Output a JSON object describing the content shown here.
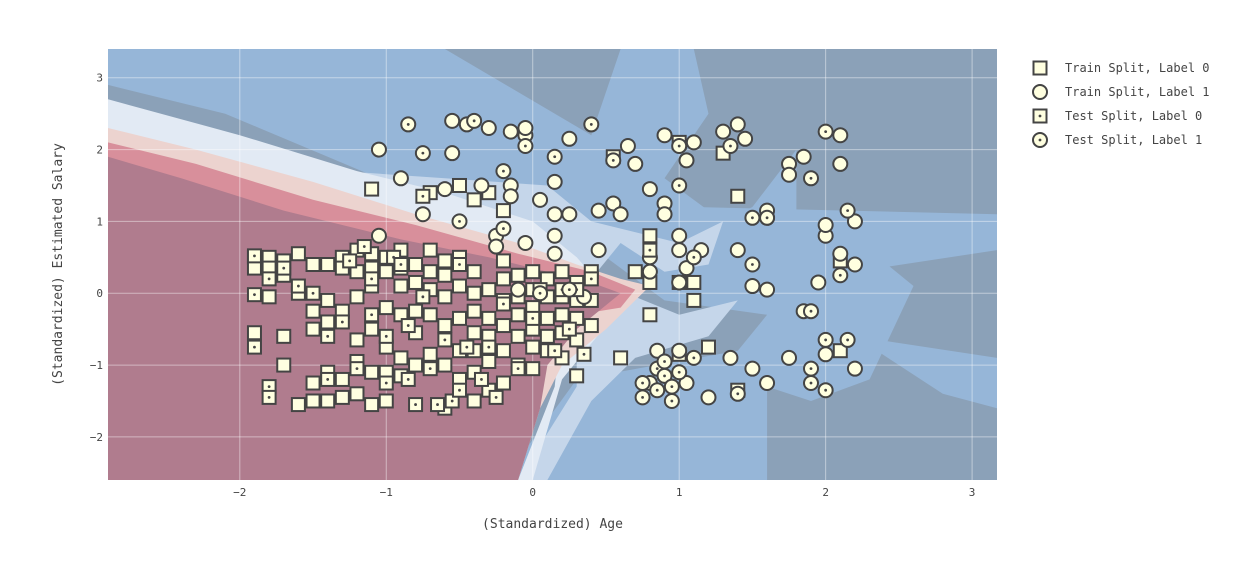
{
  "chart_data": {
    "type": "scatter",
    "title": "",
    "xlabel": "(Standardized) Age",
    "ylabel": "(Standardized) Estimated Salary",
    "xlim": [
      -2.9,
      3.17
    ],
    "ylim": [
      -2.6,
      3.4
    ],
    "x_ticks": [
      "−2",
      "−1",
      "0",
      "1",
      "2",
      "3"
    ],
    "y_ticks": [
      "−2",
      "−1",
      "0",
      "1",
      "2",
      "3"
    ],
    "grid": true,
    "legend_position": "right",
    "background": "decision-region contour (red = label 0 region, blue = label 1 region)",
    "colors": {
      "marker_fill": "#ffffe0",
      "marker_stroke": "#444444",
      "region_label0_dark": "#b07c8e",
      "region_label0_mid": "#d88f9b",
      "region_label0_light": "#ecd3cf",
      "region_neutral": "#e2eaf4",
      "region_label1_light": "#c5d6ea",
      "region_label1_mid": "#96b6d8",
      "region_label1_dark": "#8ba1b8"
    },
    "series": [
      {
        "name": "Train Split, Label 0",
        "marker": "square",
        "points": [
          [
            -1.9,
            0.5
          ],
          [
            -1.9,
            0.35
          ],
          [
            -1.9,
            -0.55
          ],
          [
            -1.8,
            0.5
          ],
          [
            -1.8,
            0.35
          ],
          [
            -1.8,
            -0.05
          ],
          [
            -1.7,
            0.45
          ],
          [
            -1.7,
            0.25
          ],
          [
            -1.7,
            -0.6
          ],
          [
            -1.7,
            -1.0
          ],
          [
            -1.6,
            0.55
          ],
          [
            -1.6,
            0.0
          ],
          [
            -1.6,
            -1.55
          ],
          [
            -1.5,
            0.4
          ],
          [
            -1.5,
            -0.25
          ],
          [
            -1.5,
            -0.5
          ],
          [
            -1.5,
            -1.25
          ],
          [
            -1.5,
            -1.5
          ],
          [
            -1.4,
            0.4
          ],
          [
            -1.4,
            -0.1
          ],
          [
            -1.4,
            -0.4
          ],
          [
            -1.4,
            -1.1
          ],
          [
            -1.4,
            -1.5
          ],
          [
            -1.3,
            0.5
          ],
          [
            -1.3,
            0.35
          ],
          [
            -1.3,
            -0.25
          ],
          [
            -1.3,
            -1.2
          ],
          [
            -1.3,
            -1.45
          ],
          [
            -1.2,
            0.6
          ],
          [
            -1.2,
            0.3
          ],
          [
            -1.2,
            -0.05
          ],
          [
            -1.2,
            -0.65
          ],
          [
            -1.2,
            -0.95
          ],
          [
            -1.2,
            -1.4
          ],
          [
            -1.1,
            1.45
          ],
          [
            -1.1,
            0.55
          ],
          [
            -1.1,
            0.35
          ],
          [
            -1.1,
            0.1
          ],
          [
            -1.1,
            -0.5
          ],
          [
            -1.1,
            -1.1
          ],
          [
            -1.1,
            -1.55
          ],
          [
            -1.0,
            0.5
          ],
          [
            -1.0,
            0.3
          ],
          [
            -1.0,
            -0.2
          ],
          [
            -1.0,
            -0.75
          ],
          [
            -1.0,
            -1.1
          ],
          [
            -1.0,
            -1.5
          ],
          [
            -0.9,
            0.6
          ],
          [
            -0.9,
            0.35
          ],
          [
            -0.9,
            0.1
          ],
          [
            -0.9,
            -0.3
          ],
          [
            -0.9,
            -0.9
          ],
          [
            -0.9,
            -1.15
          ],
          [
            -0.8,
            0.4
          ],
          [
            -0.8,
            0.15
          ],
          [
            -0.8,
            -0.25
          ],
          [
            -0.8,
            -0.55
          ],
          [
            -0.8,
            -1.0
          ],
          [
            -0.7,
            1.4
          ],
          [
            -0.7,
            0.6
          ],
          [
            -0.7,
            0.3
          ],
          [
            -0.7,
            0.05
          ],
          [
            -0.7,
            -0.3
          ],
          [
            -0.7,
            -0.85
          ],
          [
            -0.6,
            0.45
          ],
          [
            -0.6,
            0.25
          ],
          [
            -0.6,
            -0.05
          ],
          [
            -0.6,
            -0.45
          ],
          [
            -0.6,
            -1.0
          ],
          [
            -0.6,
            -1.6
          ],
          [
            -0.5,
            1.5
          ],
          [
            -0.5,
            0.5
          ],
          [
            -0.5,
            0.1
          ],
          [
            -0.5,
            -0.35
          ],
          [
            -0.5,
            -0.8
          ],
          [
            -0.5,
            -1.2
          ],
          [
            -0.4,
            1.3
          ],
          [
            -0.4,
            0.3
          ],
          [
            -0.4,
            0.0
          ],
          [
            -0.4,
            -0.25
          ],
          [
            -0.4,
            -0.55
          ],
          [
            -0.4,
            -0.8
          ],
          [
            -0.4,
            -1.1
          ],
          [
            -0.4,
            -1.5
          ],
          [
            -0.3,
            1.4
          ],
          [
            -0.3,
            0.05
          ],
          [
            -0.3,
            -0.35
          ],
          [
            -0.3,
            -0.6
          ],
          [
            -0.3,
            -0.95
          ],
          [
            -0.3,
            -1.35
          ],
          [
            -0.2,
            1.15
          ],
          [
            -0.2,
            0.45
          ],
          [
            -0.2,
            0.2
          ],
          [
            -0.2,
            -0.1
          ],
          [
            -0.2,
            -0.45
          ],
          [
            -0.2,
            -0.8
          ],
          [
            -0.2,
            -1.25
          ],
          [
            -0.1,
            0.25
          ],
          [
            -0.1,
            -0.05
          ],
          [
            -0.1,
            -0.3
          ],
          [
            -0.1,
            -0.6
          ],
          [
            -0.1,
            -1.0
          ],
          [
            0.0,
            0.3
          ],
          [
            0.0,
            0.05
          ],
          [
            0.0,
            -0.2
          ],
          [
            0.0,
            -0.5
          ],
          [
            0.0,
            -0.75
          ],
          [
            0.0,
            -1.05
          ],
          [
            0.1,
            0.2
          ],
          [
            0.1,
            -0.05
          ],
          [
            0.1,
            -0.35
          ],
          [
            0.1,
            -0.6
          ],
          [
            0.1,
            -0.8
          ],
          [
            0.2,
            0.3
          ],
          [
            0.2,
            -0.05
          ],
          [
            0.2,
            -0.3
          ],
          [
            0.2,
            -0.55
          ],
          [
            0.2,
            -0.9
          ],
          [
            0.3,
            0.15
          ],
          [
            0.3,
            -0.1
          ],
          [
            0.3,
            -0.35
          ],
          [
            0.3,
            -0.65
          ],
          [
            0.3,
            -1.15
          ],
          [
            0.4,
            0.3
          ],
          [
            0.4,
            -0.1
          ],
          [
            0.4,
            -0.45
          ],
          [
            0.6,
            -0.9
          ],
          [
            0.7,
            0.3
          ],
          [
            0.8,
            0.8
          ],
          [
            0.8,
            0.15
          ],
          [
            0.8,
            -0.3
          ],
          [
            1.0,
            0.15
          ],
          [
            1.0,
            -0.85
          ],
          [
            1.0,
            2.1
          ],
          [
            1.1,
            0.15
          ],
          [
            1.1,
            -0.1
          ],
          [
            1.2,
            -0.75
          ],
          [
            1.3,
            1.95
          ],
          [
            1.4,
            1.35
          ],
          [
            1.4,
            -1.35
          ],
          [
            2.1,
            -0.8
          ],
          [
            2.1,
            0.45
          ]
        ]
      },
      {
        "name": "Train Split, Label 1",
        "marker": "circle",
        "points": [
          [
            -1.05,
            0.8
          ],
          [
            -1.05,
            2.0
          ],
          [
            -0.9,
            1.6
          ],
          [
            -0.75,
            1.1
          ],
          [
            -0.6,
            1.45
          ],
          [
            -0.55,
            1.95
          ],
          [
            -0.55,
            2.4
          ],
          [
            -0.45,
            2.35
          ],
          [
            -0.35,
            1.5
          ],
          [
            -0.3,
            2.3
          ],
          [
            -0.25,
            0.8
          ],
          [
            -0.25,
            0.65
          ],
          [
            -0.15,
            2.25
          ],
          [
            -0.15,
            1.5
          ],
          [
            -0.15,
            1.35
          ],
          [
            -0.05,
            0.7
          ],
          [
            -0.05,
            2.2
          ],
          [
            -0.05,
            2.3
          ],
          [
            0.05,
            1.3
          ],
          [
            0.15,
            1.55
          ],
          [
            0.15,
            1.1
          ],
          [
            0.15,
            0.8
          ],
          [
            0.15,
            0.55
          ],
          [
            0.25,
            2.15
          ],
          [
            0.25,
            1.1
          ],
          [
            0.45,
            1.15
          ],
          [
            0.45,
            0.6
          ],
          [
            0.55,
            1.25
          ],
          [
            0.6,
            1.1
          ],
          [
            0.65,
            2.05
          ],
          [
            0.7,
            1.8
          ],
          [
            0.8,
            1.45
          ],
          [
            0.8,
            0.5
          ],
          [
            0.8,
            0.3
          ],
          [
            0.85,
            -0.8
          ],
          [
            0.9,
            2.2
          ],
          [
            0.9,
            1.25
          ],
          [
            0.9,
            1.1
          ],
          [
            1.0,
            0.8
          ],
          [
            1.0,
            0.6
          ],
          [
            1.0,
            0.15
          ],
          [
            1.0,
            -0.8
          ],
          [
            1.05,
            1.85
          ],
          [
            1.05,
            0.35
          ],
          [
            1.05,
            -1.25
          ],
          [
            1.1,
            2.1
          ],
          [
            1.15,
            0.6
          ],
          [
            1.2,
            -1.45
          ],
          [
            1.3,
            2.25
          ],
          [
            1.35,
            -0.9
          ],
          [
            1.4,
            2.35
          ],
          [
            1.4,
            0.6
          ],
          [
            1.45,
            2.15
          ],
          [
            1.5,
            0.1
          ],
          [
            1.5,
            -1.05
          ],
          [
            1.6,
            1.05
          ],
          [
            1.6,
            1.15
          ],
          [
            1.6,
            0.05
          ],
          [
            1.6,
            -1.25
          ],
          [
            1.75,
            1.8
          ],
          [
            1.75,
            1.65
          ],
          [
            1.75,
            -0.9
          ],
          [
            1.85,
            1.9
          ],
          [
            1.85,
            -0.25
          ],
          [
            1.95,
            0.15
          ],
          [
            2.0,
            0.8
          ],
          [
            2.0,
            0.95
          ],
          [
            2.0,
            -0.85
          ],
          [
            2.1,
            2.2
          ],
          [
            2.1,
            1.8
          ],
          [
            2.1,
            0.55
          ],
          [
            2.2,
            1.0
          ],
          [
            2.2,
            0.4
          ],
          [
            2.2,
            -1.05
          ],
          [
            -0.1,
            0.05
          ],
          [
            0.35,
            -0.05
          ],
          [
            0.8,
            -1.25
          ]
        ]
      },
      {
        "name": "Test Split, Label 0",
        "marker": "square-dot",
        "points": [
          [
            -1.9,
            0.52
          ],
          [
            -1.9,
            -0.02
          ],
          [
            -1.9,
            -0.75
          ],
          [
            -1.8,
            0.2
          ],
          [
            -1.8,
            -1.3
          ],
          [
            -1.8,
            -1.45
          ],
          [
            -1.7,
            0.35
          ],
          [
            -1.6,
            0.1
          ],
          [
            -1.5,
            -0.0
          ],
          [
            -1.4,
            -0.6
          ],
          [
            -1.4,
            -1.2
          ],
          [
            -1.3,
            -0.4
          ],
          [
            -1.25,
            0.45
          ],
          [
            -1.2,
            -1.05
          ],
          [
            -1.15,
            0.65
          ],
          [
            -1.1,
            0.2
          ],
          [
            -1.1,
            -0.3
          ],
          [
            -1.0,
            -0.6
          ],
          [
            -1.0,
            -1.25
          ],
          [
            -0.95,
            0.5
          ],
          [
            -0.9,
            0.4
          ],
          [
            -0.85,
            -1.2
          ],
          [
            -0.85,
            -0.45
          ],
          [
            -0.8,
            -1.55
          ],
          [
            -0.75,
            1.35
          ],
          [
            -0.75,
            -0.05
          ],
          [
            -0.7,
            -1.05
          ],
          [
            -0.65,
            -1.55
          ],
          [
            -0.6,
            -0.65
          ],
          [
            -0.55,
            -1.5
          ],
          [
            -0.5,
            0.4
          ],
          [
            -0.5,
            -1.35
          ],
          [
            -0.45,
            -0.75
          ],
          [
            -0.35,
            -1.2
          ],
          [
            -0.3,
            -0.75
          ],
          [
            -0.25,
            -1.45
          ],
          [
            -0.2,
            -0.15
          ],
          [
            -0.1,
            -1.05
          ],
          [
            0.0,
            -0.35
          ],
          [
            0.05,
            0.05
          ],
          [
            0.15,
            -0.8
          ],
          [
            0.2,
            0.05
          ],
          [
            0.25,
            -0.5
          ],
          [
            0.3,
            0.05
          ],
          [
            0.35,
            -0.85
          ],
          [
            0.4,
            0.2
          ],
          [
            0.55,
            1.9
          ],
          [
            0.8,
            0.6
          ]
        ]
      },
      {
        "name": "Test Split, Label 1",
        "marker": "circle-dot",
        "points": [
          [
            -0.85,
            2.35
          ],
          [
            -0.75,
            1.95
          ],
          [
            -0.5,
            1.0
          ],
          [
            -0.4,
            2.4
          ],
          [
            -0.2,
            1.7
          ],
          [
            -0.2,
            0.9
          ],
          [
            -0.05,
            2.05
          ],
          [
            0.05,
            0.0
          ],
          [
            0.15,
            1.9
          ],
          [
            0.25,
            0.05
          ],
          [
            0.4,
            2.35
          ],
          [
            0.55,
            1.85
          ],
          [
            0.75,
            -1.25
          ],
          [
            0.75,
            -1.45
          ],
          [
            0.85,
            -1.05
          ],
          [
            0.85,
            -1.35
          ],
          [
            0.9,
            -0.95
          ],
          [
            0.9,
            -1.15
          ],
          [
            0.95,
            -1.3
          ],
          [
            0.95,
            -1.5
          ],
          [
            1.0,
            -1.1
          ],
          [
            1.0,
            2.05
          ],
          [
            1.0,
            1.5
          ],
          [
            1.1,
            -0.9
          ],
          [
            1.1,
            0.5
          ],
          [
            1.35,
            2.05
          ],
          [
            1.4,
            -1.4
          ],
          [
            1.5,
            0.4
          ],
          [
            1.5,
            1.05
          ],
          [
            1.6,
            1.05
          ],
          [
            1.9,
            1.6
          ],
          [
            1.9,
            -0.25
          ],
          [
            1.9,
            -1.05
          ],
          [
            1.9,
            -1.25
          ],
          [
            2.0,
            -0.65
          ],
          [
            2.0,
            -1.35
          ],
          [
            2.0,
            2.25
          ],
          [
            2.1,
            0.25
          ],
          [
            2.15,
            -0.65
          ],
          [
            2.15,
            1.15
          ]
        ]
      }
    ]
  }
}
